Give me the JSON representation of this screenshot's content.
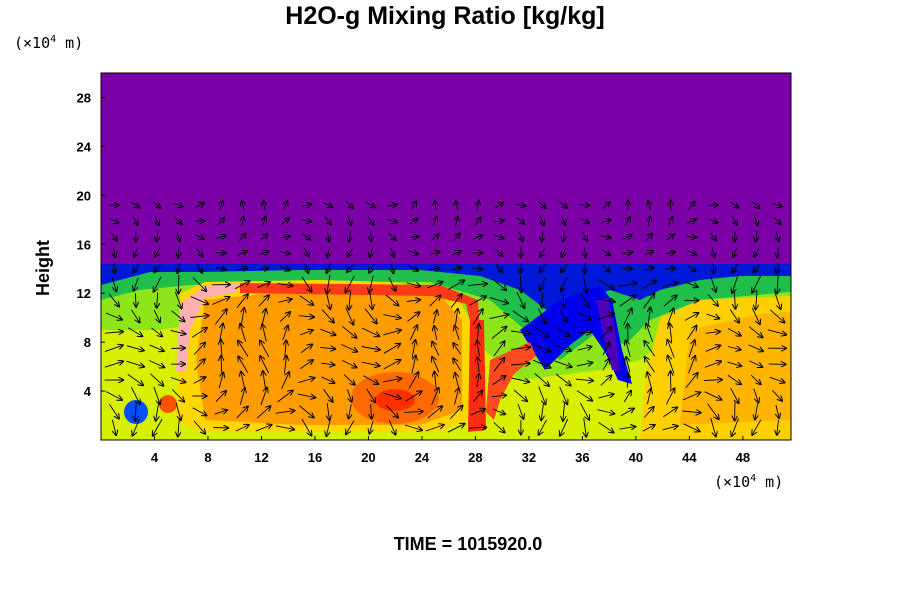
{
  "chart_data": {
    "type": "heatmap",
    "title": "H2O-g Mixing Ratio [kg/kg]",
    "ylabel": "Height",
    "x_unit": {
      "prefix": "(×10",
      "exp": "4",
      "suffix": " m)"
    },
    "y_unit": {
      "prefix": "(×10",
      "exp": "4",
      "suffix": " m)"
    },
    "footer": "TIME = 1015920.0",
    "xlim": [
      0,
      51.6
    ],
    "ylim": [
      0,
      30
    ],
    "x_ticks": [
      4,
      8,
      12,
      16,
      20,
      24,
      28,
      32,
      36,
      40,
      44,
      48
    ],
    "y_ticks": [
      4,
      8,
      12,
      16,
      20,
      24,
      28
    ],
    "overlay": "wind-vectors",
    "colors": {
      "dry": "#7b00a8",
      "low": "#0000ff",
      "mid_low": "#00ff00",
      "mid": "#ffff00",
      "high": "#ff8000",
      "max": "#ff0000",
      "peak": "#ffb0b0"
    }
  }
}
